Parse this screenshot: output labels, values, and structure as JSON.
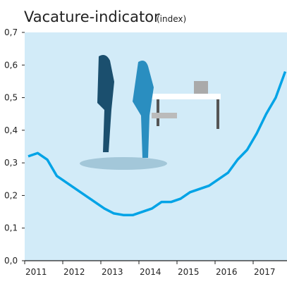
{
  "chart_data": {
    "type": "line",
    "title": "Vacature-indicator",
    "subtitle": "(index)",
    "categories": [
      "2011",
      null,
      null,
      null,
      "2012",
      null,
      null,
      null,
      "2013",
      null,
      null,
      null,
      "2014",
      null,
      null,
      null,
      "2015",
      null,
      null,
      null,
      "2016",
      null,
      null,
      null,
      "2017",
      null,
      null,
      null
    ],
    "series": [
      {
        "name": "Vacature-indicator",
        "color": "#00a3e6",
        "values": [
          0.32,
          0.33,
          0.31,
          0.26,
          0.24,
          0.22,
          0.2,
          0.18,
          0.16,
          0.145,
          0.14,
          0.14,
          0.15,
          0.16,
          0.18,
          0.18,
          0.19,
          0.21,
          0.22,
          0.23,
          0.25,
          0.27,
          0.31,
          0.34,
          0.39,
          0.45,
          0.5,
          0.58
        ]
      }
    ],
    "ylim": [
      0,
      0.7
    ],
    "yticks": [
      {
        "value": 0,
        "label": "0,0"
      },
      {
        "value": 0.1,
        "label": "0,1"
      },
      {
        "value": 0.2,
        "label": "0,2"
      },
      {
        "value": 0.3,
        "label": "0,3"
      },
      {
        "value": 0.4,
        "label": "0,4"
      },
      {
        "value": 0.5,
        "label": "0,5"
      },
      {
        "value": 0.6,
        "label": "0,6"
      },
      {
        "value": 0.7,
        "label": "0,7"
      }
    ],
    "background": "#d2ebf8"
  }
}
